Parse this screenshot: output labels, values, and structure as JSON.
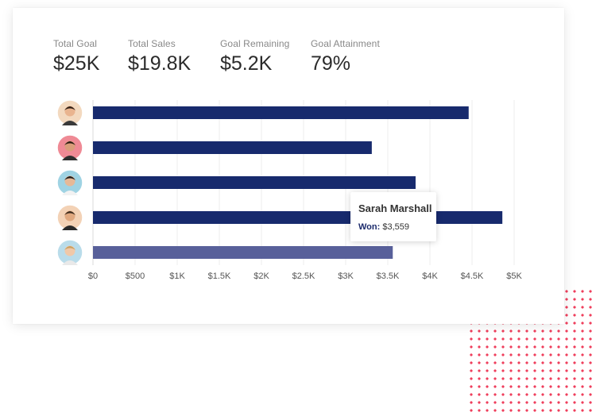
{
  "kpis": [
    {
      "label": "Total Goal",
      "value": "$25K"
    },
    {
      "label": "Total Sales",
      "value": "$19.8K"
    },
    {
      "label": "Goal Remaining",
      "value": "$5.2K"
    },
    {
      "label": "Goal Attainment",
      "value": "79%"
    }
  ],
  "tooltip": {
    "name": "Sarah Marshall",
    "key": "Won",
    "value": "$3,559"
  },
  "avatars": [
    "woman-dark-hair-avatar",
    "man-beard-avatar",
    "man-glasses-avatar",
    "man-beard-glasses-avatar",
    "woman-blonde-avatar"
  ],
  "colors": {
    "bar": "#172a6d",
    "bar_highlight": "#58609a",
    "dots": "#ef3e5c"
  },
  "chart_data": {
    "type": "bar",
    "orientation": "horizontal",
    "categories": [
      "person-1",
      "person-2",
      "person-3",
      "person-4",
      "Sarah Marshall"
    ],
    "values": [
      4460,
      3310,
      3830,
      4860,
      3559
    ],
    "highlighted_index": 4,
    "xlim": [
      0,
      5000
    ],
    "xticks": [
      0,
      500,
      1000,
      1500,
      2000,
      2500,
      3000,
      3500,
      4000,
      4500,
      5000
    ],
    "tick_labels": [
      "$0",
      "$500",
      "$1K",
      "$1.5K",
      "$2K",
      "$2.5K",
      "$3K",
      "$3.5K",
      "$4K",
      "$4.5K",
      "$5K"
    ],
    "grid": true
  }
}
